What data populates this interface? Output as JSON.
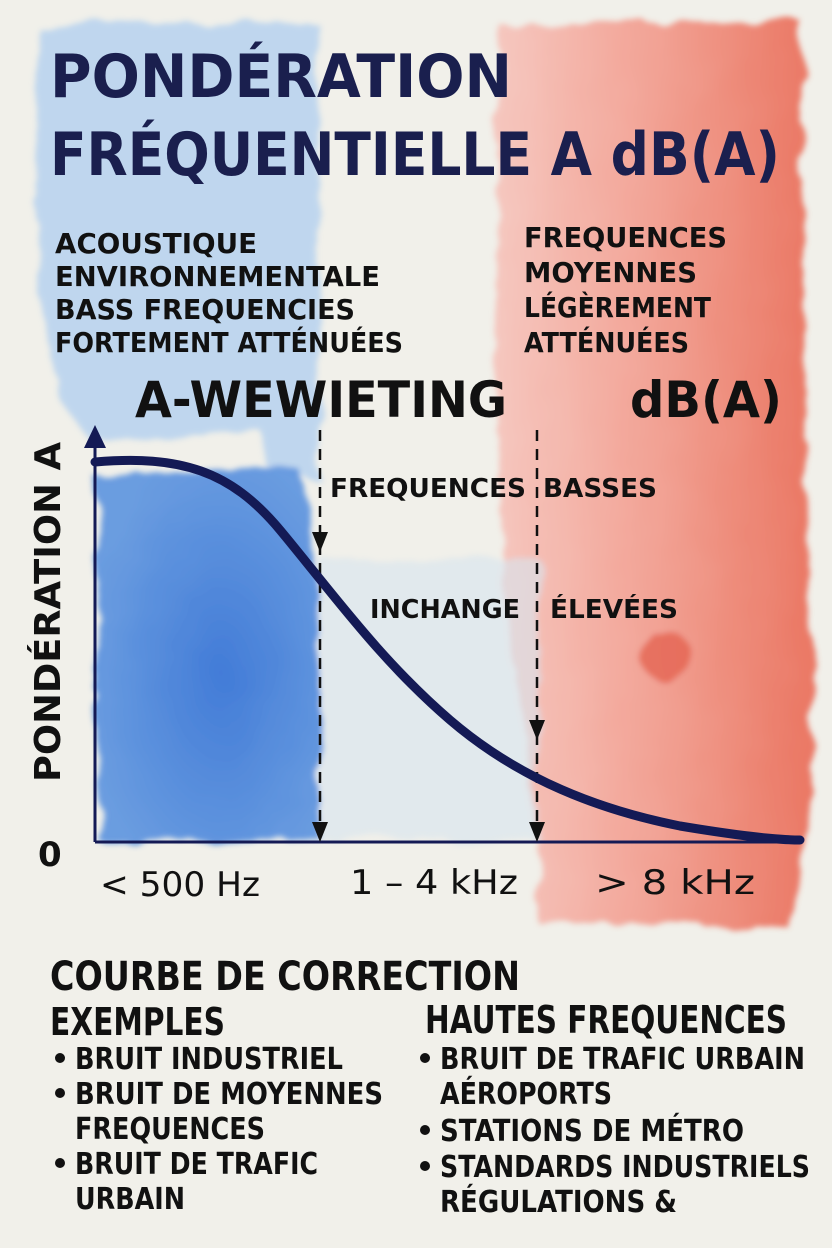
{
  "title": {
    "line1": "PONDÉRATION",
    "line2": "FRÉQUENTIELLE A dB(A)"
  },
  "left_notes": [
    "ACOUSTIQUE",
    "ENVIRONNEMENTALE",
    "BASS  FREQUENCIES",
    "FORTEMENT ATTÉNUÉES"
  ],
  "right_notes": [
    "FREQUENCES",
    "MOYENNES",
    "LÉGÈREMENT",
    "ATTÉNUÉES"
  ],
  "left_heading": "A-WEWIETING",
  "right_heading": "dB(A)",
  "diagram": {
    "y_axis_label": "PONDÉRATION  A",
    "origin_label": "0",
    "x_labels": [
      "< 500 Hz",
      "1 – 4 kHz",
      "> 8 kHz"
    ],
    "annotations": {
      "freq": "FREQUENCES",
      "basses": "BASSES",
      "inchange": "INCHANGE",
      "elevees": "ÉLEVÉES"
    }
  },
  "bottom": {
    "heading": "COURBE DE CORRECTION",
    "left": {
      "title": "EXEMPLES",
      "items": [
        [
          "BRUIT INDUSTRIEL"
        ],
        [
          "BRUIT DE MOYENNES",
          "FREQUENCES"
        ],
        [
          "BRUIT DE TRAFIC",
          "URBAIN"
        ]
      ]
    },
    "right": {
      "title": "HAUTES FREQUENCES",
      "items": [
        [
          "BRUIT DE TRAFIC URBAIN",
          "AÉROPORTS"
        ],
        [
          "STATIONS DE MÉTRO"
        ],
        [
          "STANDARDS INDUSTRIELS",
          "RÉGULATIONS &"
        ]
      ]
    }
  },
  "colors": {
    "blue_wash": "#a9c8ea",
    "blue_deep": "#3f7fd8",
    "red_wash": "#ef8f80",
    "curve": "#141a55",
    "paper": "#f1f0ea"
  }
}
